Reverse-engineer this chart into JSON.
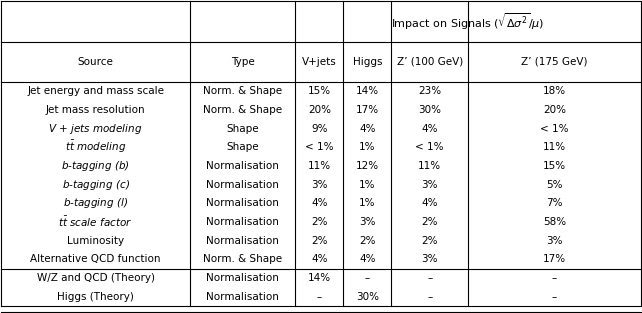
{
  "col_headers_row1": [
    "",
    "",
    "Impact on Signals (√Δσ²/μ)"
  ],
  "col_headers_row2": [
    "Source",
    "Type",
    "V+jets",
    "Higgs",
    "Z’ (100 GeV)",
    "Z’ (175 GeV)"
  ],
  "rows": [
    [
      "Jet energy and mass scale",
      "Norm. & Shape",
      "15%",
      "14%",
      "23%",
      "18%"
    ],
    [
      "Jet mass resolution",
      "Norm. & Shape",
      "20%",
      "17%",
      "30%",
      "20%"
    ],
    [
      "V + jets modeling",
      "Shape",
      "9%",
      "4%",
      "4%",
      "< 1%"
    ],
    [
      "t\\=t modeling",
      "Shape",
      "< 1%",
      "1%",
      "< 1%",
      "11%"
    ],
    [
      "b-tagging (b)",
      "Normalisation",
      "11%",
      "12%",
      "11%",
      "15%"
    ],
    [
      "b-tagging (c)",
      "Normalisation",
      "3%",
      "1%",
      "3%",
      "5%"
    ],
    [
      "b-tagging (l)",
      "Normalisation",
      "4%",
      "1%",
      "4%",
      "7%"
    ],
    [
      "t\\=t scale factor",
      "Normalisation",
      "2%",
      "3%",
      "2%",
      "58%"
    ],
    [
      "Luminosity",
      "Normalisation",
      "2%",
      "2%",
      "2%",
      "3%"
    ],
    [
      "Alternative QCD function",
      "Norm. & Shape",
      "4%",
      "4%",
      "3%",
      "17%"
    ],
    [
      "W/Z and QCD (Theory)",
      "Normalisation",
      "14%",
      "–",
      "–",
      "–"
    ],
    [
      "Higgs (Theory)",
      "Normalisation",
      "–",
      "30%",
      "–",
      "–"
    ]
  ],
  "italic_sources": [
    "V + jets modeling",
    "t\\=t modeling",
    "b-tagging (b)",
    "b-tagging (c)",
    "b-tagging (l)",
    "t\\=t scale factor"
  ],
  "separator_after_row": 9,
  "figsize": [
    6.42,
    3.13
  ],
  "dpi": 100,
  "bg_color": "#ffffff",
  "text_color": "#000000",
  "font_size": 7.5
}
